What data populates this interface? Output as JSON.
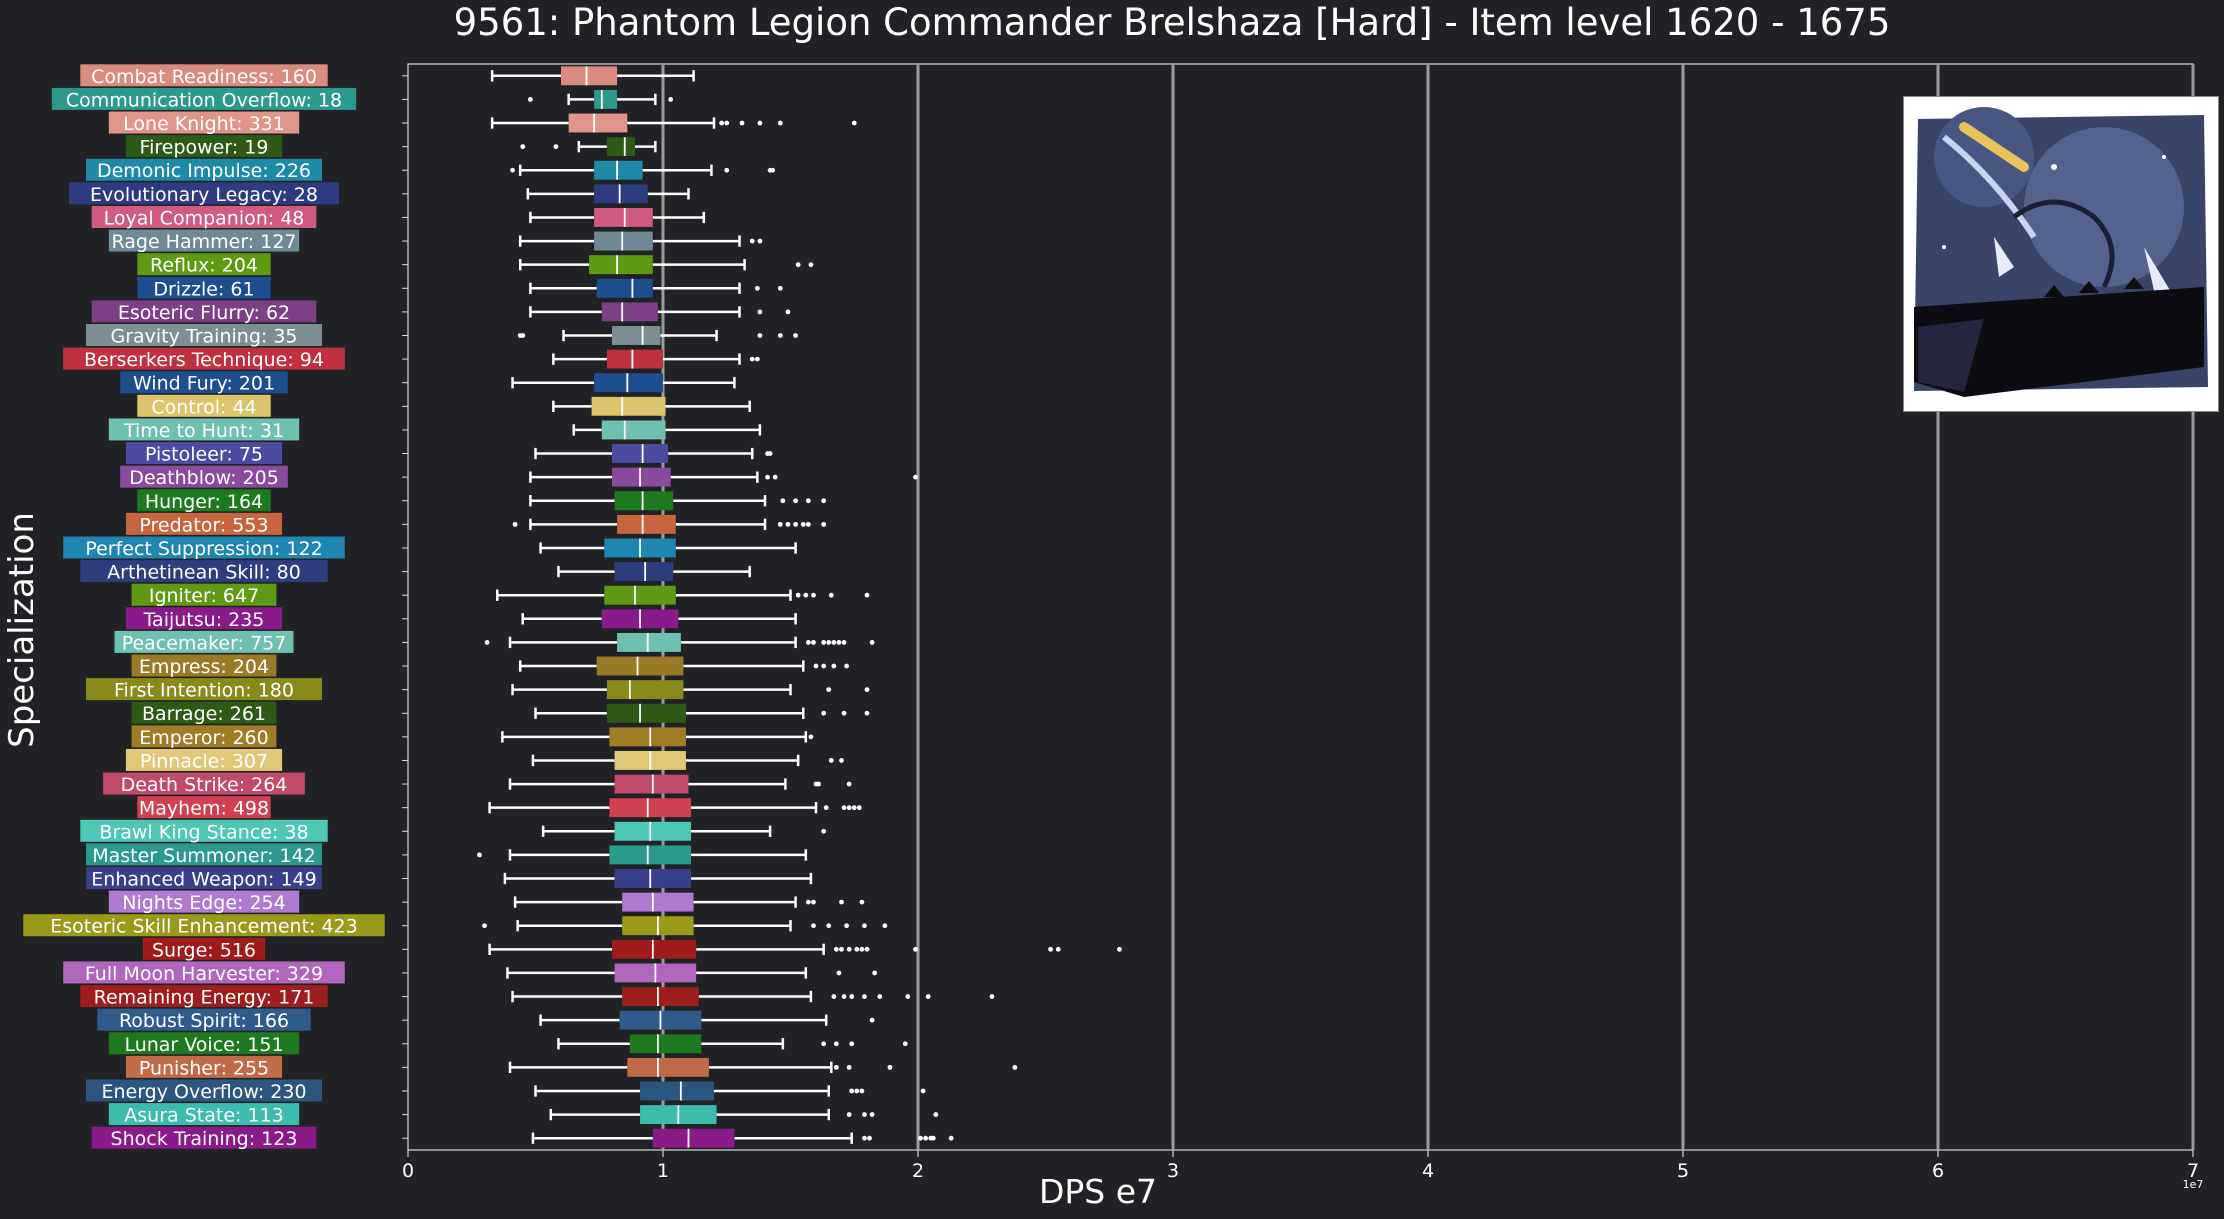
{
  "chart_data": {
    "type": "box",
    "orientation": "horizontal",
    "title": "9561: Phantom Legion Commander Brelshaza [Hard] - Item level 1620 - 1675",
    "xlabel": "DPS e7",
    "ylabel": "Specialization",
    "x_offset_label": "1e7",
    "xlim": [
      0,
      7
    ],
    "xticks": [
      "0",
      "1",
      "2",
      "3",
      "4",
      "5",
      "6",
      "7"
    ],
    "grid": "vertical major gridlines",
    "categories": [
      {
        "label": "Combat Readiness: 160",
        "color": "#d98b80",
        "whislo": 0.33,
        "q1": 0.6,
        "med": 0.7,
        "q3": 0.82,
        "whishi": 1.12,
        "fliers": []
      },
      {
        "label": "Communication Overflow: 18",
        "color": "#2b9a8c",
        "whislo": 0.63,
        "q1": 0.73,
        "med": 0.76,
        "q3": 0.82,
        "whishi": 0.97,
        "fliers": [
          0.48,
          1.03
        ]
      },
      {
        "label": "Lone Knight: 331",
        "color": "#e0948a",
        "whislo": 0.33,
        "q1": 0.63,
        "med": 0.73,
        "q3": 0.86,
        "whishi": 1.2,
        "fliers": [
          1.23,
          1.25,
          1.31,
          1.38,
          1.46,
          1.75
        ]
      },
      {
        "label": "Firepower: 19",
        "color": "#2e5a16",
        "whislo": 0.67,
        "q1": 0.78,
        "med": 0.85,
        "q3": 0.89,
        "whishi": 0.97,
        "fliers": [
          0.45,
          0.58
        ]
      },
      {
        "label": "Demonic Impulse: 226",
        "color": "#1e8aa8",
        "whislo": 0.44,
        "q1": 0.73,
        "med": 0.82,
        "q3": 0.92,
        "whishi": 1.19,
        "fliers": [
          0.41,
          1.25,
          1.42,
          1.43
        ]
      },
      {
        "label": "Evolutionary Legacy: 28",
        "color": "#2f3b80",
        "whislo": 0.47,
        "q1": 0.73,
        "med": 0.83,
        "q3": 0.94,
        "whishi": 1.1,
        "fliers": []
      },
      {
        "label": "Loyal Companion: 48",
        "color": "#d05a80",
        "whislo": 0.48,
        "q1": 0.73,
        "med": 0.85,
        "q3": 0.96,
        "whishi": 1.16,
        "fliers": []
      },
      {
        "label": "Rage Hammer: 127",
        "color": "#6f8a95",
        "whislo": 0.44,
        "q1": 0.73,
        "med": 0.84,
        "q3": 0.96,
        "whishi": 1.3,
        "fliers": [
          1.35,
          1.38
        ]
      },
      {
        "label": "Reflux: 204",
        "color": "#5e9a14",
        "whislo": 0.44,
        "q1": 0.71,
        "med": 0.82,
        "q3": 0.96,
        "whishi": 1.32,
        "fliers": [
          1.53,
          1.58
        ]
      },
      {
        "label": "Drizzle: 61",
        "color": "#1d4e8f",
        "whislo": 0.48,
        "q1": 0.74,
        "med": 0.88,
        "q3": 0.96,
        "whishi": 1.3,
        "fliers": [
          1.37,
          1.46
        ]
      },
      {
        "label": "Esoteric Flurry: 62",
        "color": "#7d3f86",
        "whislo": 0.48,
        "q1": 0.76,
        "med": 0.84,
        "q3": 0.98,
        "whishi": 1.3,
        "fliers": [
          1.38,
          1.49
        ]
      },
      {
        "label": "Gravity Training: 35",
        "color": "#7d8f94",
        "whislo": 0.61,
        "q1": 0.8,
        "med": 0.92,
        "q3": 0.99,
        "whishi": 1.21,
        "fliers": [
          0.44,
          0.45,
          1.38,
          1.46,
          1.52
        ]
      },
      {
        "label": "Berserkers Technique: 94",
        "color": "#c0303e",
        "whislo": 0.57,
        "q1": 0.78,
        "med": 0.88,
        "q3": 1.0,
        "whishi": 1.3,
        "fliers": [
          1.35,
          1.37
        ]
      },
      {
        "label": "Wind Fury: 201",
        "color": "#1d4e8f",
        "whislo": 0.41,
        "q1": 0.73,
        "med": 0.86,
        "q3": 1.0,
        "whishi": 1.28,
        "fliers": []
      },
      {
        "label": "Control: 44",
        "color": "#dcc46a",
        "whislo": 0.57,
        "q1": 0.72,
        "med": 0.84,
        "q3": 1.01,
        "whishi": 1.34,
        "fliers": []
      },
      {
        "label": "Time to Hunt: 31",
        "color": "#6ec0b0",
        "whislo": 0.65,
        "q1": 0.76,
        "med": 0.85,
        "q3": 1.01,
        "whishi": 1.38,
        "fliers": []
      },
      {
        "label": "Pistoleer: 75",
        "color": "#4c4ba0",
        "whislo": 0.5,
        "q1": 0.8,
        "med": 0.92,
        "q3": 1.02,
        "whishi": 1.35,
        "fliers": [
          1.41,
          1.42
        ]
      },
      {
        "label": "Deathblow: 205",
        "color": "#8a4a9e",
        "whislo": 0.48,
        "q1": 0.8,
        "med": 0.91,
        "q3": 1.03,
        "whishi": 1.37,
        "fliers": [
          1.41,
          1.44,
          1.99
        ]
      },
      {
        "label": "Hunger: 164",
        "color": "#1e7a1e",
        "whislo": 0.48,
        "q1": 0.81,
        "med": 0.92,
        "q3": 1.04,
        "whishi": 1.4,
        "fliers": [
          1.47,
          1.52,
          1.57,
          1.63
        ]
      },
      {
        "label": "Predator: 553",
        "color": "#c8643e",
        "whislo": 0.48,
        "q1": 0.82,
        "med": 0.92,
        "q3": 1.05,
        "whishi": 1.4,
        "fliers": [
          0.42,
          1.46,
          1.49,
          1.52,
          1.55,
          1.57,
          1.63
        ]
      },
      {
        "label": "Perfect Suppression: 122",
        "color": "#1e86b0",
        "whislo": 0.52,
        "q1": 0.77,
        "med": 0.91,
        "q3": 1.05,
        "whishi": 1.52,
        "fliers": []
      },
      {
        "label": "Arthetinean Skill: 80",
        "color": "#2e3d7c",
        "whislo": 0.59,
        "q1": 0.81,
        "med": 0.93,
        "q3": 1.04,
        "whishi": 1.34,
        "fliers": []
      },
      {
        "label": "Igniter: 647",
        "color": "#5e9a14",
        "whislo": 0.35,
        "q1": 0.77,
        "med": 0.89,
        "q3": 1.05,
        "whishi": 1.5,
        "fliers": [
          1.53,
          1.56,
          1.59,
          1.66,
          1.8
        ]
      },
      {
        "label": "Taijutsu: 235",
        "color": "#8a1a8a",
        "whislo": 0.45,
        "q1": 0.76,
        "med": 0.91,
        "q3": 1.06,
        "whishi": 1.52,
        "fliers": []
      },
      {
        "label": "Peacemaker: 757",
        "color": "#6ec0b0",
        "whislo": 0.4,
        "q1": 0.82,
        "med": 0.94,
        "q3": 1.07,
        "whishi": 1.52,
        "fliers": [
          0.31,
          1.57,
          1.59,
          1.63,
          1.65,
          1.67,
          1.69,
          1.71,
          1.82
        ]
      },
      {
        "label": "Empress: 204",
        "color": "#9a7a24",
        "whislo": 0.44,
        "q1": 0.74,
        "med": 0.9,
        "q3": 1.08,
        "whishi": 1.55,
        "fliers": [
          1.6,
          1.63,
          1.67,
          1.72
        ]
      },
      {
        "label": "First Intention: 180",
        "color": "#8a8a1a",
        "whislo": 0.41,
        "q1": 0.78,
        "med": 0.87,
        "q3": 1.08,
        "whishi": 1.5,
        "fliers": [
          1.65,
          1.8
        ]
      },
      {
        "label": "Barrage: 261",
        "color": "#2e5a16",
        "whislo": 0.5,
        "q1": 0.78,
        "med": 0.91,
        "q3": 1.09,
        "whishi": 1.55,
        "fliers": [
          1.63,
          1.71,
          1.8
        ]
      },
      {
        "label": "Emperor: 260",
        "color": "#a07c24",
        "whislo": 0.37,
        "q1": 0.79,
        "med": 0.95,
        "q3": 1.09,
        "whishi": 1.56,
        "fliers": [
          1.58
        ]
      },
      {
        "label": "Pinnacle: 307",
        "color": "#e0c878",
        "whislo": 0.49,
        "q1": 0.81,
        "med": 0.95,
        "q3": 1.09,
        "whishi": 1.53,
        "fliers": [
          1.66,
          1.7
        ]
      },
      {
        "label": "Death Strike: 264",
        "color": "#c04a6a",
        "whislo": 0.4,
        "q1": 0.81,
        "med": 0.96,
        "q3": 1.1,
        "whishi": 1.48,
        "fliers": [
          1.6,
          1.61,
          1.73
        ]
      },
      {
        "label": "Mayhem: 498",
        "color": "#d04050",
        "whislo": 0.32,
        "q1": 0.79,
        "med": 0.94,
        "q3": 1.11,
        "whishi": 1.6,
        "fliers": [
          1.64,
          1.71,
          1.73,
          1.75,
          1.77
        ]
      },
      {
        "label": "Brawl King Stance: 38",
        "color": "#4ec8b4",
        "whislo": 0.53,
        "q1": 0.81,
        "med": 0.95,
        "q3": 1.11,
        "whishi": 1.42,
        "fliers": [
          1.63
        ]
      },
      {
        "label": "Master Summoner: 142",
        "color": "#2b9a8c",
        "whislo": 0.4,
        "q1": 0.79,
        "med": 0.94,
        "q3": 1.11,
        "whishi": 1.56,
        "fliers": [
          0.28
        ]
      },
      {
        "label": "Enhanced Weapon: 149",
        "color": "#3a3f8c",
        "whislo": 0.38,
        "q1": 0.81,
        "med": 0.95,
        "q3": 1.11,
        "whishi": 1.58,
        "fliers": []
      },
      {
        "label": "Nights Edge: 254",
        "color": "#b07ad0",
        "whislo": 0.42,
        "q1": 0.84,
        "med": 0.96,
        "q3": 1.12,
        "whishi": 1.52,
        "fliers": [
          1.57,
          1.59,
          1.7,
          1.78
        ]
      },
      {
        "label": "Esoteric Skill Enhancement: 423",
        "color": "#9a9a1a",
        "whislo": 0.43,
        "q1": 0.84,
        "med": 0.98,
        "q3": 1.12,
        "whishi": 1.5,
        "fliers": [
          0.3,
          1.59,
          1.65,
          1.72,
          1.79,
          1.87
        ]
      },
      {
        "label": "Surge: 516",
        "color": "#a01c1c",
        "whislo": 0.32,
        "q1": 0.8,
        "med": 0.96,
        "q3": 1.13,
        "whishi": 1.63,
        "fliers": [
          1.68,
          1.7,
          1.73,
          1.76,
          1.78,
          1.8,
          1.99,
          2.52,
          2.55,
          2.79
        ]
      },
      {
        "label": "Full Moon Harvester: 329",
        "color": "#b066bc",
        "whislo": 0.39,
        "q1": 0.81,
        "med": 0.97,
        "q3": 1.13,
        "whishi": 1.56,
        "fliers": [
          1.69,
          1.83
        ]
      },
      {
        "label": "Remaining Energy: 171",
        "color": "#9e1e1e",
        "whislo": 0.41,
        "q1": 0.84,
        "med": 0.98,
        "q3": 1.14,
        "whishi": 1.58,
        "fliers": [
          1.67,
          1.71,
          1.74,
          1.79,
          1.85,
          1.96,
          2.04,
          2.29
        ]
      },
      {
        "label": "Robust Spirit: 166",
        "color": "#2f5c8c",
        "whislo": 0.52,
        "q1": 0.83,
        "med": 0.99,
        "q3": 1.15,
        "whishi": 1.64,
        "fliers": [
          1.82
        ]
      },
      {
        "label": "Lunar Voice: 151",
        "color": "#1e7a1e",
        "whislo": 0.59,
        "q1": 0.87,
        "med": 0.98,
        "q3": 1.15,
        "whishi": 1.47,
        "fliers": [
          1.63,
          1.68,
          1.74,
          1.95
        ]
      },
      {
        "label": "Punisher: 255",
        "color": "#c06a48",
        "whislo": 0.4,
        "q1": 0.86,
        "med": 0.98,
        "q3": 1.18,
        "whishi": 1.66,
        "fliers": [
          1.68,
          1.73,
          1.89,
          2.38
        ]
      },
      {
        "label": "Energy Overflow: 230",
        "color": "#2c5580",
        "whislo": 0.5,
        "q1": 0.91,
        "med": 1.07,
        "q3": 1.2,
        "whishi": 1.65,
        "fliers": [
          1.74,
          1.76,
          1.78,
          2.02
        ]
      },
      {
        "label": "Asura State: 113",
        "color": "#3cbcac",
        "whislo": 0.56,
        "q1": 0.91,
        "med": 1.06,
        "q3": 1.21,
        "whishi": 1.65,
        "fliers": [
          1.73,
          1.79,
          1.82,
          2.07
        ]
      },
      {
        "label": "Shock Training: 123",
        "color": "#8a1a8a",
        "whislo": 0.49,
        "q1": 0.96,
        "med": 1.1,
        "q3": 1.28,
        "whishi": 1.74,
        "fliers": [
          1.79,
          1.81,
          2.01,
          2.03,
          2.05,
          2.06,
          2.13
        ]
      }
    ]
  }
}
